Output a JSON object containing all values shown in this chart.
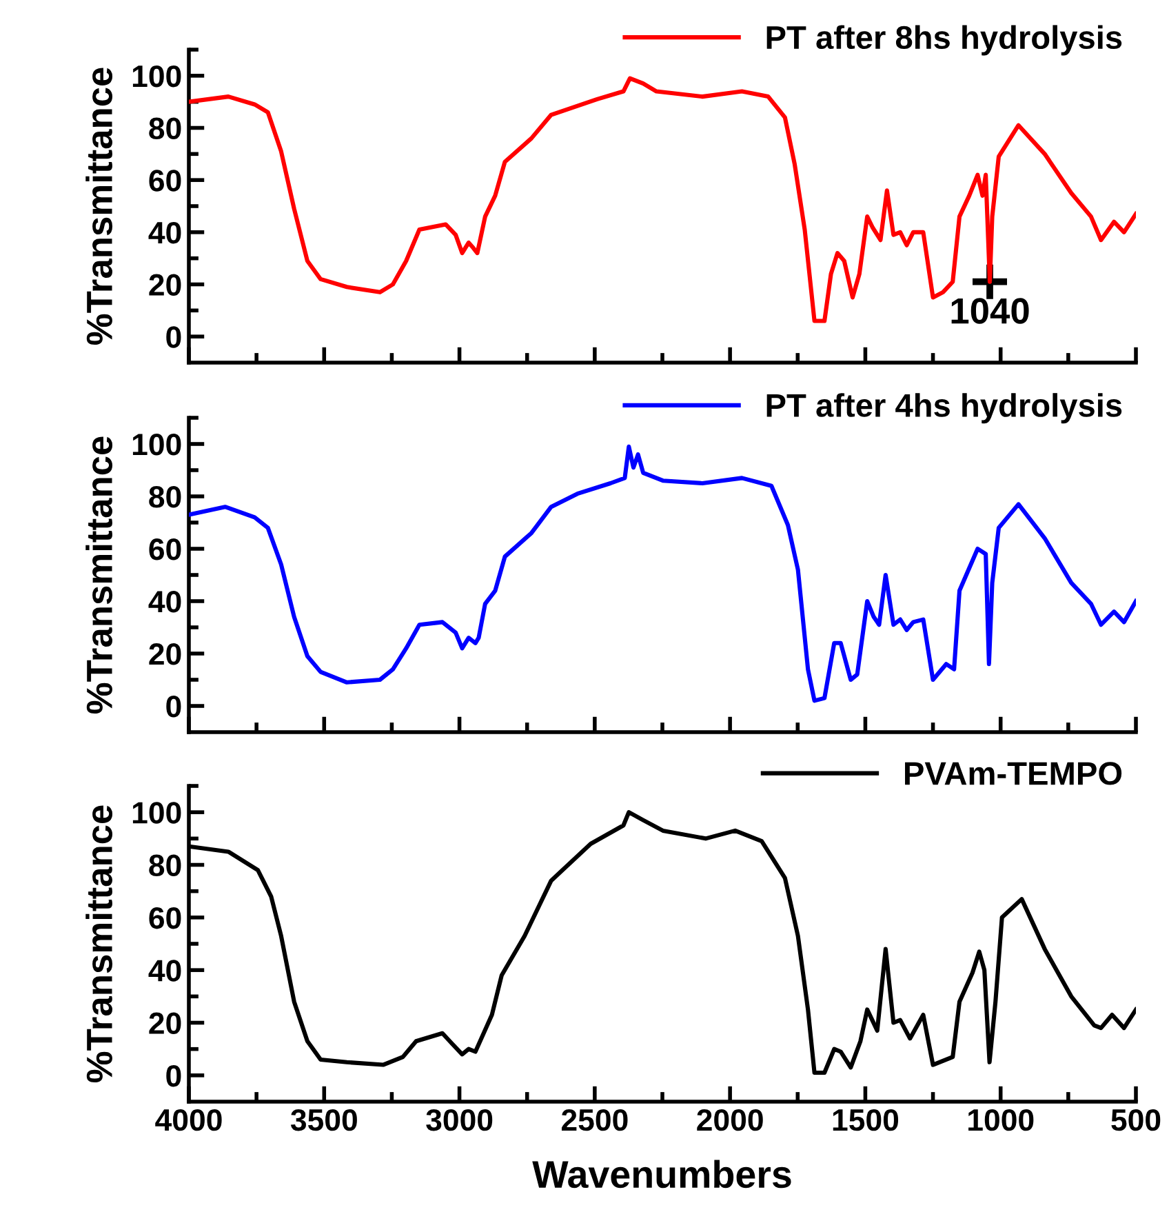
{
  "chart_data": [
    {
      "type": "line",
      "ylabel": "%Transmittance",
      "xlim": [
        4000,
        500
      ],
      "ylim": [
        -10,
        110
      ],
      "legend": "top right",
      "grid": false,
      "tick_labels": "y",
      "line_style": "solid",
      "marker": "none",
      "yticks": [
        0,
        {
          "value": 10,
          "label": null
        },
        20,
        {
          "value": 30,
          "label": null
        },
        40,
        {
          "value": 50,
          "label": null
        },
        60,
        {
          "value": 70,
          "label": null
        },
        80,
        {
          "value": 90,
          "label": null
        },
        100,
        {
          "value": 110,
          "label": null
        }
      ],
      "xticks": [
        4000,
        {
          "value": 3750,
          "label": null
        },
        3500,
        {
          "value": 3250,
          "label": null
        },
        3000,
        {
          "value": 2750,
          "label": null
        },
        2500,
        {
          "value": 2250,
          "label": null
        },
        2000,
        {
          "value": 1750,
          "label": null
        },
        1500,
        {
          "value": 1250,
          "label": null
        },
        1000,
        {
          "value": 750,
          "label": null
        },
        500
      ],
      "annotations": [
        {
          "text": "1040",
          "x": 1040,
          "y": 21
        }
      ],
      "series": [
        {
          "name": "PT after 8hs hydrolysis",
          "color": "#ff0000",
          "x": [
            4000,
            3854,
            3757,
            3708,
            3659,
            3611,
            3562,
            3513,
            3416,
            3294,
            3246,
            3197,
            3148,
            3051,
            3014,
            2990,
            2966,
            2949,
            2934,
            2905,
            2868,
            2832,
            2734,
            2661,
            2491,
            2394,
            2370,
            2321,
            2272,
            2102,
            1956,
            1859,
            1797,
            1761,
            1724,
            1688,
            1651,
            1627,
            1603,
            1578,
            1547,
            1522,
            1493,
            1474,
            1444,
            1420,
            1396,
            1371,
            1347,
            1323,
            1286,
            1250,
            1213,
            1177,
            1152,
            1116,
            1085,
            1067,
            1055,
            1040,
            1031,
            1007,
            934,
            837,
            739,
            666,
            629,
            581,
            544,
            500
          ],
          "values": [
            90,
            92,
            89,
            86,
            71,
            49,
            29,
            22,
            19,
            17,
            20,
            29,
            41,
            43,
            39,
            32,
            36,
            34,
            32,
            46,
            54,
            67,
            76,
            85,
            91,
            94,
            99,
            97,
            94,
            92,
            94,
            92,
            84,
            66,
            41,
            6,
            6,
            24,
            32,
            29,
            15,
            24,
            46,
            42,
            37,
            56,
            39,
            40,
            35,
            40,
            40,
            15,
            17,
            21,
            46,
            54,
            62,
            54,
            62,
            21,
            46,
            69,
            81,
            70,
            55,
            46,
            37,
            44,
            40,
            47
          ]
        }
      ]
    },
    {
      "type": "line",
      "ylabel": "%Transmittance",
      "xlim": [
        4000,
        500
      ],
      "ylim": [
        -10,
        110
      ],
      "legend": "top right",
      "grid": false,
      "tick_labels": "y",
      "line_style": "solid",
      "marker": "none",
      "yticks": [
        0,
        {
          "value": 10,
          "label": null
        },
        20,
        {
          "value": 30,
          "label": null
        },
        40,
        {
          "value": 50,
          "label": null
        },
        60,
        {
          "value": 70,
          "label": null
        },
        80,
        {
          "value": 90,
          "label": null
        },
        100,
        {
          "value": 110,
          "label": null
        }
      ],
      "xticks": [
        4000,
        {
          "value": 3750,
          "label": null
        },
        3500,
        {
          "value": 3250,
          "label": null
        },
        3000,
        {
          "value": 2750,
          "label": null
        },
        2500,
        {
          "value": 2250,
          "label": null
        },
        2000,
        {
          "value": 1750,
          "label": null
        },
        1500,
        {
          "value": 1250,
          "label": null
        },
        1000,
        {
          "value": 750,
          "label": null
        },
        500
      ],
      "series": [
        {
          "name": "PT after 4hs hydrolysis",
          "color": "#0000ff",
          "x": [
            4000,
            3866,
            3757,
            3708,
            3659,
            3611,
            3562,
            3513,
            3416,
            3294,
            3246,
            3197,
            3148,
            3063,
            3014,
            2990,
            2966,
            2941,
            2929,
            2905,
            2868,
            2832,
            2734,
            2661,
            2564,
            2442,
            2389,
            2374,
            2357,
            2340,
            2321,
            2248,
            2102,
            1956,
            1847,
            1786,
            1749,
            1712,
            1688,
            1651,
            1615,
            1591,
            1554,
            1530,
            1493,
            1469,
            1449,
            1425,
            1396,
            1371,
            1347,
            1323,
            1286,
            1250,
            1201,
            1172,
            1152,
            1085,
            1055,
            1043,
            1031,
            1007,
            934,
            837,
            739,
            666,
            629,
            581,
            544,
            500
          ],
          "values": [
            73,
            76,
            72,
            68,
            54,
            34,
            19,
            13,
            9,
            10,
            14,
            22,
            31,
            32,
            28,
            22,
            26,
            24,
            26,
            39,
            44,
            57,
            66,
            76,
            81,
            85,
            87,
            99,
            91,
            96,
            89,
            86,
            85,
            87,
            84,
            69,
            52,
            14,
            2,
            3,
            24,
            24,
            10,
            12,
            40,
            34,
            31,
            50,
            31,
            33,
            29,
            32,
            33,
            10,
            16,
            14,
            44,
            60,
            58,
            16,
            47,
            68,
            77,
            64,
            47,
            39,
            31,
            36,
            32,
            40
          ]
        }
      ]
    },
    {
      "type": "line",
      "ylabel": "%Transmittance",
      "xlabel": "Wavenumbers",
      "xlim": [
        4000,
        500
      ],
      "ylim": [
        -10,
        110
      ],
      "legend": "top right",
      "grid": false,
      "line_style": "solid",
      "marker": "none",
      "yticks": [
        0,
        {
          "value": 10,
          "label": null
        },
        20,
        {
          "value": 30,
          "label": null
        },
        40,
        {
          "value": 50,
          "label": null
        },
        60,
        {
          "value": 70,
          "label": null
        },
        80,
        {
          "value": 90,
          "label": null
        },
        100,
        {
          "value": 110,
          "label": null
        }
      ],
      "xticks": [
        4000,
        {
          "value": 3750,
          "label": null
        },
        3500,
        {
          "value": 3250,
          "label": null
        },
        3000,
        {
          "value": 2750,
          "label": null
        },
        2500,
        {
          "value": 2250,
          "label": null
        },
        2000,
        {
          "value": 1750,
          "label": null
        },
        1500,
        {
          "value": 1250,
          "label": null
        },
        1000,
        {
          "value": 750,
          "label": null
        },
        500
      ],
      "series": [
        {
          "name": "PVAm-TEMPO",
          "color": "#000000",
          "x": [
            4000,
            3854,
            3745,
            3696,
            3659,
            3611,
            3562,
            3513,
            3416,
            3282,
            3209,
            3160,
            3063,
            3027,
            2990,
            2966,
            2941,
            2880,
            2844,
            2759,
            2661,
            2515,
            2394,
            2374,
            2321,
            2248,
            2090,
            1981,
            1883,
            1797,
            1749,
            1712,
            1688,
            1651,
            1615,
            1591,
            1554,
            1518,
            1493,
            1456,
            1425,
            1396,
            1371,
            1335,
            1286,
            1250,
            1177,
            1152,
            1104,
            1079,
            1060,
            1041,
            1019,
            995,
            922,
            837,
            739,
            654,
            629,
            588,
            544,
            500
          ],
          "values": [
            87,
            85,
            78,
            68,
            53,
            28,
            13,
            6,
            5,
            4,
            7,
            13,
            16,
            12,
            8,
            10,
            9,
            23,
            38,
            53,
            74,
            88,
            95,
            100,
            97,
            93,
            90,
            93,
            89,
            75,
            53,
            25,
            1,
            1,
            10,
            9,
            3,
            13,
            25,
            17,
            48,
            20,
            21,
            14,
            23,
            4,
            7,
            28,
            39,
            47,
            40,
            5,
            28,
            60,
            67,
            48,
            30,
            19,
            18,
            23,
            18,
            25
          ]
        }
      ]
    }
  ]
}
